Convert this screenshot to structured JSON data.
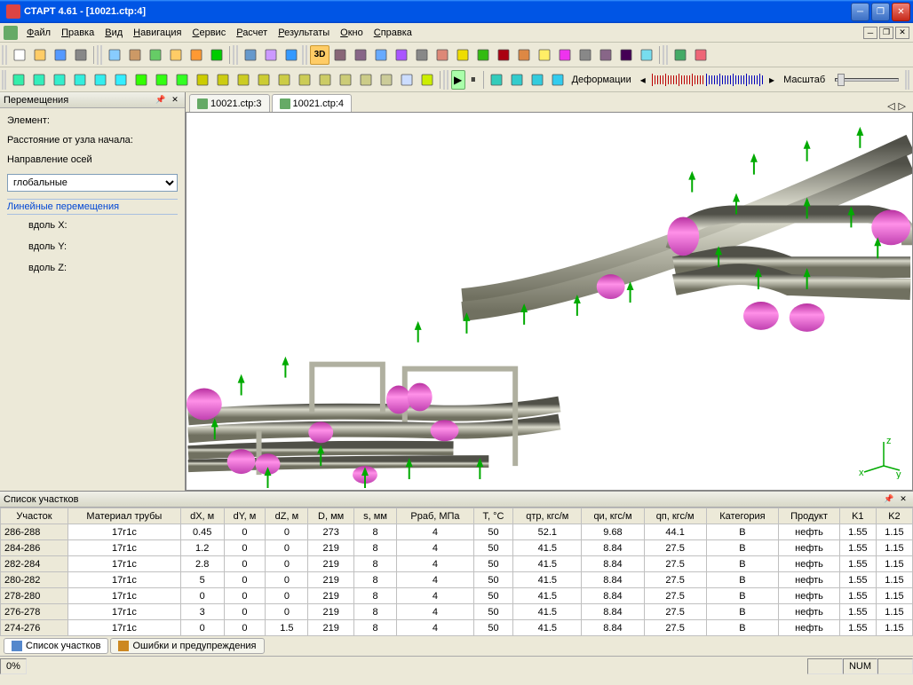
{
  "title": "СТАРТ 4.61 - [10021.ctp:4]",
  "menu": [
    "Файл",
    "Правка",
    "Вид",
    "Навигация",
    "Сервис",
    "Расчет",
    "Результаты",
    "Окно",
    "Справка"
  ],
  "toolbar_row1_groups": [
    {
      "icons": [
        "new",
        "open",
        "save",
        "print"
      ]
    },
    {
      "icons": [
        "copy",
        "paste",
        "grid",
        "props",
        "layers",
        "run-green"
      ]
    },
    {
      "icons": [
        "calc",
        "table",
        "info"
      ]
    }
  ],
  "toolbar_row1_right": {
    "btn3d_label": "3D",
    "icons": [
      "view1",
      "view2",
      "cube",
      "cube-dd",
      "fit",
      "zoom-out",
      "zoom-in",
      "zoom-win",
      "zoom-reg",
      "pan",
      "pointer",
      "rot-left",
      "find",
      "rot-ccw",
      "rot-cw",
      "refresh"
    ],
    "end_icons": [
      "anchor",
      "sun"
    ]
  },
  "toolbar_row2": {
    "left_icons": [
      "n1",
      "n2",
      "n3",
      "n4",
      "n5",
      "n6",
      "n7",
      "n8",
      "n9",
      "n10",
      "n11",
      "n12",
      "n13",
      "n14",
      "n15",
      "n16",
      "n17",
      "n18",
      "n19",
      "n20",
      "n21"
    ],
    "play_icons": [
      "play",
      "step"
    ],
    "misc_icons": [
      "m1",
      "m2",
      "m3",
      "m4"
    ],
    "label_deform": "Деформации",
    "red_ticks": 20,
    "blue_ticks": 22,
    "label_scale": "Масштаб"
  },
  "side_panel": {
    "title": "Перемещения",
    "element_label": "Элемент:",
    "distance_label": "Расстояние от узла начала:",
    "axis_label": "Направление осей",
    "axis_value": "глобальные",
    "linear_label": "Линейные перемещения",
    "along_x": "вдоль X:",
    "along_y": "вдоль Y:",
    "along_z": "вдоль Z:"
  },
  "doc_tabs": [
    {
      "label": "10021.ctp:3",
      "active": false
    },
    {
      "label": "10021.ctp:4",
      "active": true
    }
  ],
  "bottom_panel": {
    "title": "Список участков",
    "columns": [
      "Участок",
      "Материал трубы",
      "dX, м",
      "dY, м",
      "dZ, м",
      "D, мм",
      "s, мм",
      "Pраб, МПа",
      "T, °C",
      "qтр, кгс/м",
      "qи, кгс/м",
      "qп, кгс/м",
      "Категория",
      "Продукт",
      "K1",
      "K2"
    ],
    "rows": [
      [
        "286-288",
        "17г1с",
        "0.45",
        "0",
        "0",
        "273",
        "8",
        "4",
        "50",
        "52.1",
        "9.68",
        "44.1",
        "B",
        "нефть",
        "1.55",
        "1.15"
      ],
      [
        "284-286",
        "17г1с",
        "1.2",
        "0",
        "0",
        "219",
        "8",
        "4",
        "50",
        "41.5",
        "8.84",
        "27.5",
        "B",
        "нефть",
        "1.55",
        "1.15"
      ],
      [
        "282-284",
        "17г1с",
        "2.8",
        "0",
        "0",
        "219",
        "8",
        "4",
        "50",
        "41.5",
        "8.84",
        "27.5",
        "B",
        "нефть",
        "1.55",
        "1.15"
      ],
      [
        "280-282",
        "17г1с",
        "5",
        "0",
        "0",
        "219",
        "8",
        "4",
        "50",
        "41.5",
        "8.84",
        "27.5",
        "B",
        "нефть",
        "1.55",
        "1.15"
      ],
      [
        "278-280",
        "17г1с",
        "0",
        "0",
        "0",
        "219",
        "8",
        "4",
        "50",
        "41.5",
        "8.84",
        "27.5",
        "B",
        "нефть",
        "1.55",
        "1.15"
      ],
      [
        "276-278",
        "17г1с",
        "3",
        "0",
        "0",
        "219",
        "8",
        "4",
        "50",
        "41.5",
        "8.84",
        "27.5",
        "B",
        "нефть",
        "1.55",
        "1.15"
      ],
      [
        "274-276",
        "17г1с",
        "0",
        "0",
        "1.5",
        "219",
        "8",
        "4",
        "50",
        "41.5",
        "8.84",
        "27.5",
        "B",
        "нефть",
        "1.55",
        "1.15"
      ]
    ],
    "tabs": [
      {
        "label": "Список участков",
        "active": true,
        "icon_color": "#5588cc"
      },
      {
        "label": "Ошибки и предупреждения",
        "active": false,
        "icon_color": "#cc8822"
      }
    ]
  },
  "status": {
    "percent": "0%",
    "num": "NUM"
  },
  "pipe_colors": {
    "pipe": "#8a8a78",
    "pipe_light": "#d8d8ca",
    "elbow": "#e055c0",
    "arrow": "#00aa00"
  }
}
